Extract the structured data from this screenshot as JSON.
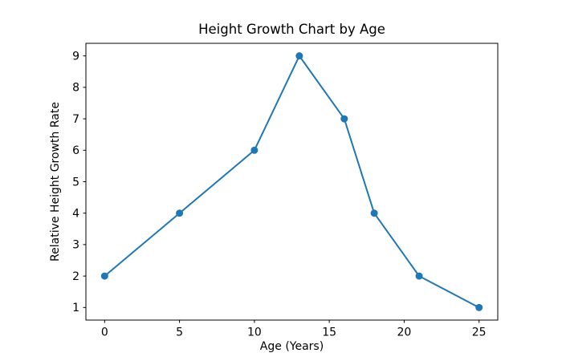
{
  "chart_data": {
    "type": "line",
    "title": "Height Growth Chart by Age",
    "xlabel": "Age (Years)",
    "ylabel": "Relative Height Growth Rate",
    "x": [
      0,
      5,
      10,
      13,
      16,
      18,
      21,
      25
    ],
    "y": [
      2,
      4,
      6,
      9,
      7,
      4,
      2,
      1
    ],
    "xticks": [
      0,
      5,
      10,
      15,
      20,
      25
    ],
    "yticks": [
      1,
      2,
      3,
      4,
      5,
      6,
      7,
      8,
      9
    ],
    "xlim": [
      -1.25,
      26.25
    ],
    "ylim": [
      0.6,
      9.4
    ],
    "grid": false,
    "legend_position": "none",
    "line_color": "#1f77b4",
    "marker": "circle",
    "marker_color": "#1f77b4",
    "axis_color": "#000000",
    "background_color": "#ffffff"
  }
}
